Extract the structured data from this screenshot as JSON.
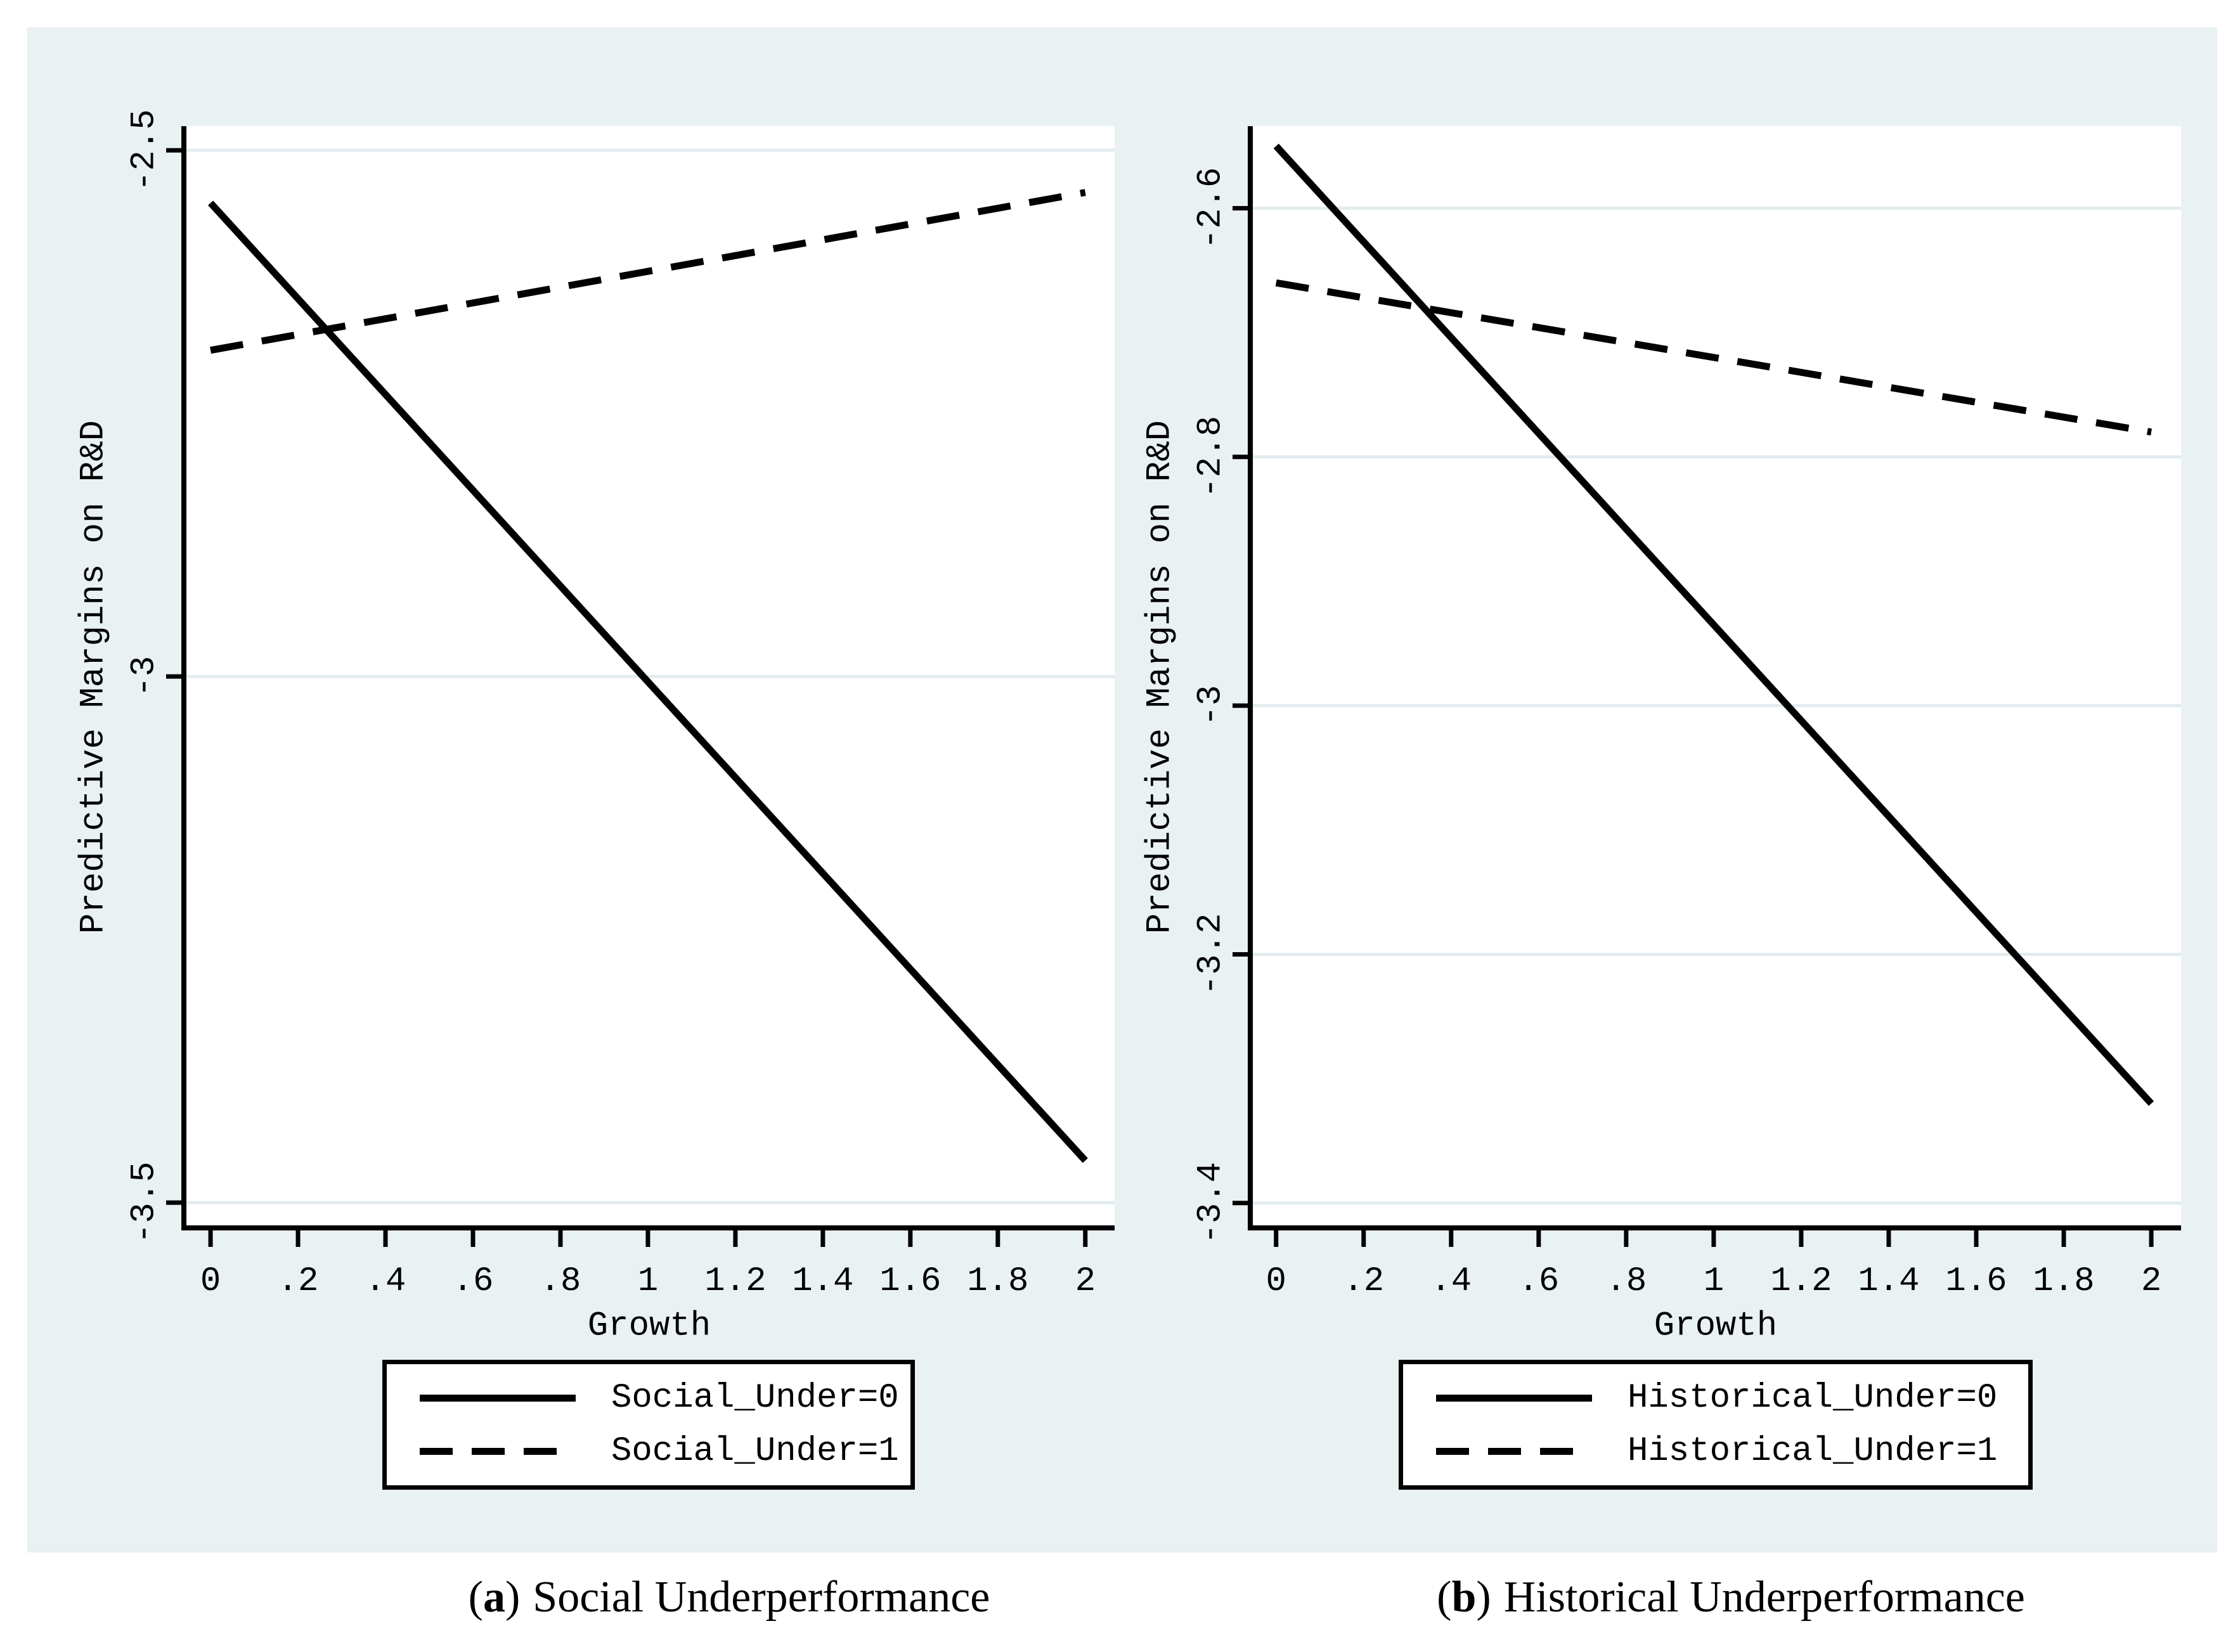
{
  "figure": {
    "background_color": "#eaf1f3",
    "plot_background": "#ffffff",
    "grid_color": "#e2ecef",
    "line_color": "#000000"
  },
  "chart_data": [
    {
      "type": "line",
      "panel_label": "a",
      "caption_open": "(",
      "caption_close": ")",
      "caption": "Social Underperformance",
      "xlabel": "Growth",
      "ylabel": "Predictive Margins on R&D",
      "x_tick_values": [
        0,
        0.2,
        0.4,
        0.6,
        0.8,
        1,
        1.2,
        1.4,
        1.6,
        1.8,
        2
      ],
      "x_tick_labels": [
        "0",
        ".2",
        ".4",
        ".6",
        ".8",
        "1",
        "1.2",
        "1.4",
        "1.6",
        "1.8",
        "2"
      ],
      "y_tick_values": [
        -2.5,
        -3,
        -3.5
      ],
      "y_tick_labels": [
        "-2.5",
        "-3",
        "-3.5"
      ],
      "xlim": [
        -0.061,
        2.067
      ],
      "ylim": [
        -3.524,
        -2.477
      ],
      "grid": true,
      "legend_position": "below",
      "series": [
        {
          "name": "Social_Under=0",
          "style": "solid",
          "x": [
            0,
            2
          ],
          "y": [
            -2.55,
            -3.46
          ]
        },
        {
          "name": "Social_Under=1",
          "style": "dashed",
          "x": [
            0,
            2
          ],
          "y": [
            -2.69,
            -2.54
          ]
        }
      ]
    },
    {
      "type": "line",
      "panel_label": "b",
      "caption_open": "(",
      "caption_close": ")",
      "caption": "Historical Underperformance",
      "xlabel": "Growth",
      "ylabel": "Predictive Margins on R&D",
      "x_tick_values": [
        0,
        0.2,
        0.4,
        0.6,
        0.8,
        1,
        1.2,
        1.4,
        1.6,
        1.8,
        2
      ],
      "x_tick_labels": [
        "0",
        ".2",
        ".4",
        ".6",
        ".8",
        "1",
        "1.2",
        "1.4",
        "1.6",
        "1.8",
        "2"
      ],
      "y_tick_values": [
        -2.6,
        -2.8,
        -3,
        -3.2,
        -3.4
      ],
      "y_tick_labels": [
        "-2.6",
        "-2.8",
        "-3",
        "-3.2",
        "-3.4"
      ],
      "xlim": [
        -0.059,
        2.068
      ],
      "ylim": [
        -3.42,
        -2.534
      ],
      "grid": true,
      "legend_position": "below",
      "series": [
        {
          "name": "Historical_Under=0",
          "style": "solid",
          "x": [
            0,
            2
          ],
          "y": [
            -2.55,
            -3.32
          ]
        },
        {
          "name": "Historical_Under=1",
          "style": "dashed",
          "x": [
            0,
            2
          ],
          "y": [
            -2.66,
            -2.78
          ]
        }
      ]
    }
  ]
}
